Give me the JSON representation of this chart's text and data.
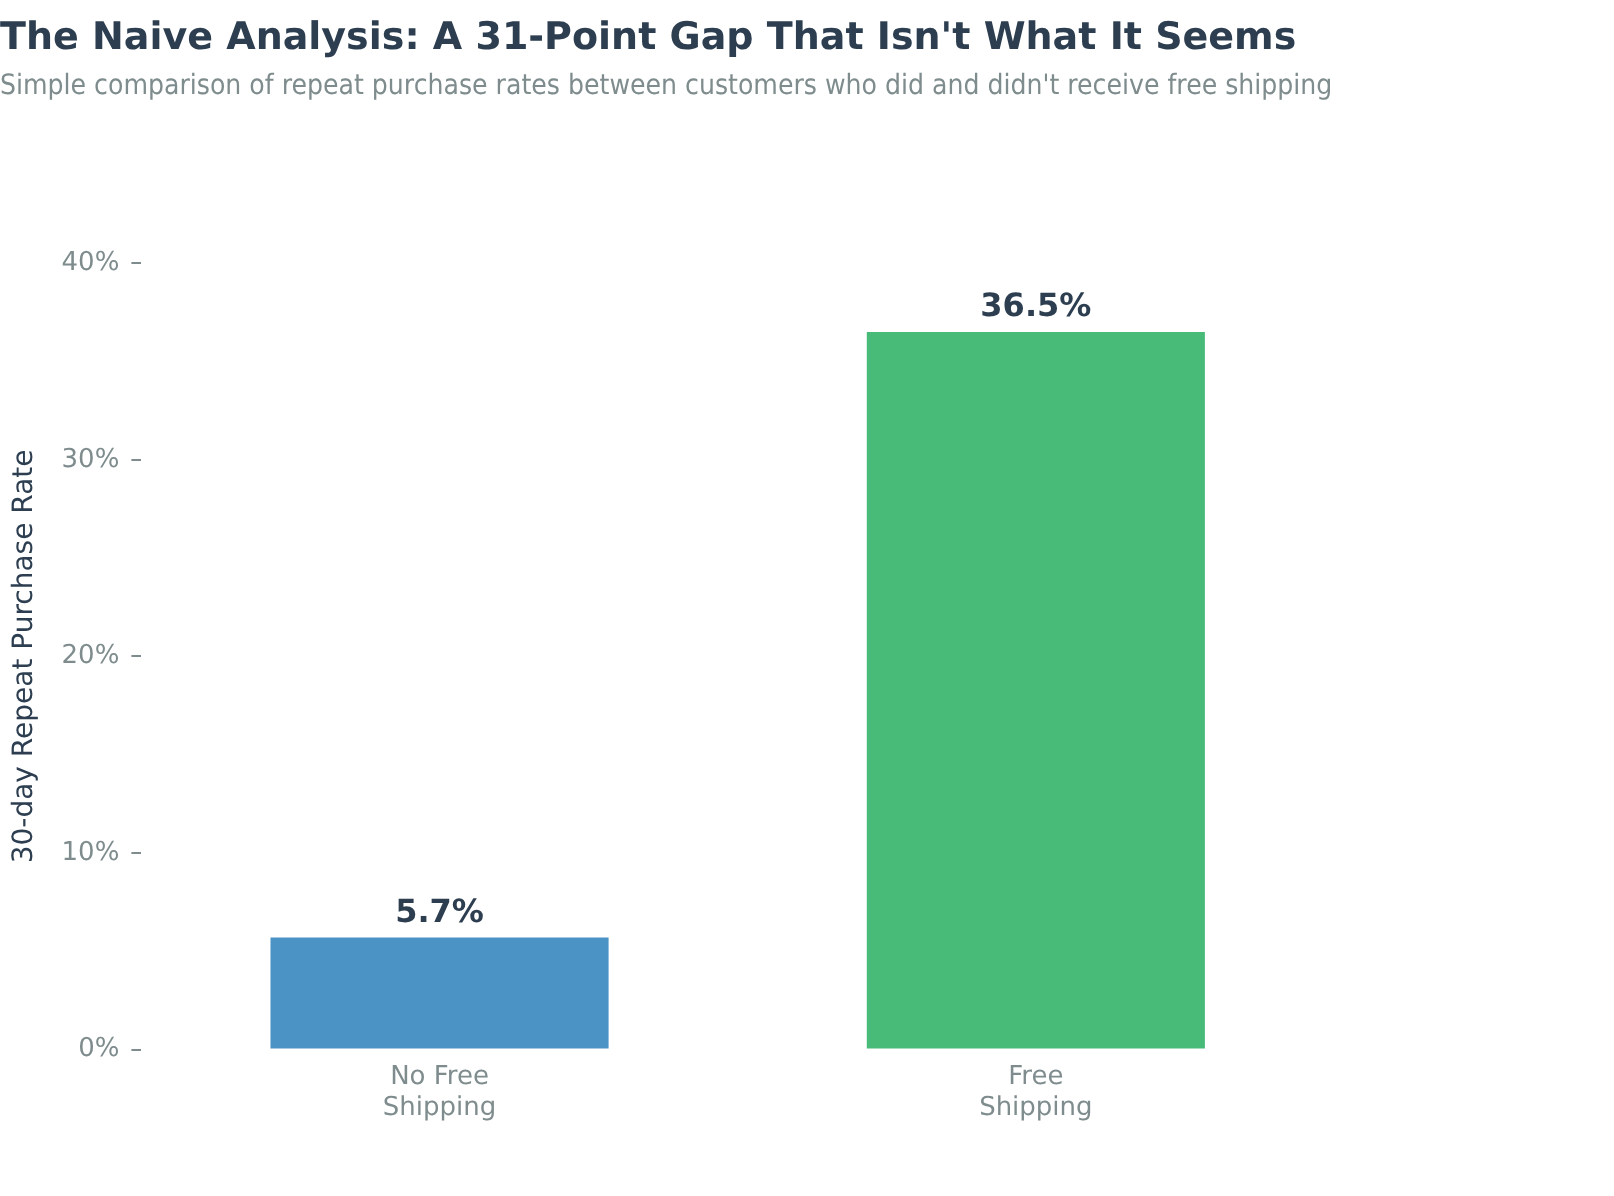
{
  "chart_data": {
    "type": "bar",
    "title": "The Naive Analysis: A 31-Point Gap That Isn't What It Seems",
    "subtitle": "Simple comparison of repeat purchase rates between customers who did and didn't receive free shipping",
    "ylabel": "30-day Repeat Purchase Rate",
    "categories": [
      "No Free Shipping",
      "Free Shipping"
    ],
    "values": [
      5.7,
      36.5
    ],
    "colors": [
      "#4a93c4",
      "#48bb78"
    ],
    "value_labels": [
      "5.7%",
      "36.5%"
    ],
    "ylim": [
      0,
      40
    ],
    "yticks": [
      {
        "value": 0,
        "label": "0%"
      },
      {
        "value": 10,
        "label": "10%"
      },
      {
        "value": 20,
        "label": "20%"
      },
      {
        "value": 30,
        "label": "30%"
      },
      {
        "value": 40,
        "label": "40%"
      }
    ],
    "grid": false,
    "legend": false
  }
}
